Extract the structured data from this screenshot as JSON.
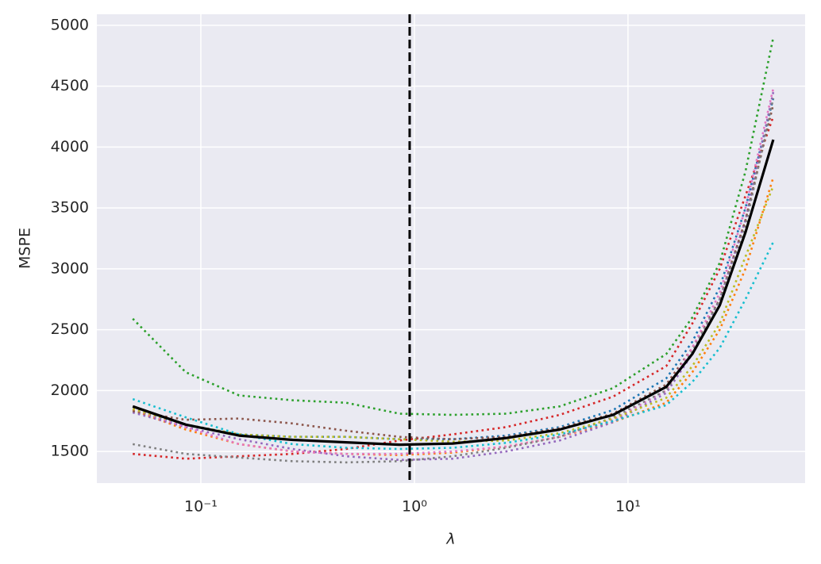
{
  "chart_data": {
    "type": "line",
    "xlabel": "λ",
    "ylabel": "MSPE",
    "x_scale": "log",
    "grid": true,
    "background": "#eaeaf2",
    "xlim": [
      0.0326,
      67.5
    ],
    "ylim": [
      1240,
      5090
    ],
    "xticks": [
      {
        "value": 0.1,
        "label": "10⁻¹"
      },
      {
        "value": 1,
        "label": "10⁰"
      },
      {
        "value": 10,
        "label": "10¹"
      }
    ],
    "yticks": [
      1500,
      2000,
      2500,
      3000,
      3500,
      4000,
      4500,
      5000
    ],
    "vline": {
      "x": 0.95,
      "color": "#000000"
    },
    "x": [
      0.048,
      0.085,
      0.151,
      0.269,
      0.479,
      0.851,
      1.51,
      2.69,
      4.79,
      8.51,
      15.1,
      20,
      26.9,
      35.5,
      47.9
    ],
    "series": [
      {
        "color": "#1f77b4",
        "style": "dotted",
        "values": [
          1830,
          1720,
          1640,
          1620,
          1620,
          1600,
          1600,
          1630,
          1700,
          1840,
          2100,
          2400,
          2850,
          3500,
          4400
        ]
      },
      {
        "color": "#ff7f0e",
        "style": "dotted",
        "values": [
          1840,
          1680,
          1560,
          1500,
          1480,
          1470,
          1490,
          1540,
          1620,
          1740,
          1900,
          2150,
          2500,
          3000,
          3750
        ]
      },
      {
        "color": "#2ca02c",
        "style": "dotted",
        "values": [
          2590,
          2150,
          1960,
          1920,
          1900,
          1810,
          1800,
          1810,
          1870,
          2020,
          2300,
          2600,
          3050,
          3800,
          4900
        ]
      },
      {
        "color": "#d62728",
        "style": "dotted",
        "values": [
          1480,
          1440,
          1460,
          1480,
          1520,
          1590,
          1640,
          1700,
          1800,
          1950,
          2200,
          2550,
          3000,
          3600,
          4250
        ]
      },
      {
        "color": "#9467bd",
        "style": "dotted",
        "values": [
          1820,
          1700,
          1600,
          1520,
          1460,
          1430,
          1440,
          1500,
          1590,
          1740,
          1980,
          2300,
          2750,
          3400,
          4450
        ]
      },
      {
        "color": "#8c564b",
        "style": "dotted",
        "values": [
          1830,
          1760,
          1770,
          1730,
          1670,
          1620,
          1600,
          1620,
          1690,
          1810,
          2050,
          2350,
          2750,
          3400,
          4350
        ]
      },
      {
        "color": "#e377c2",
        "style": "dotted",
        "values": [
          1850,
          1700,
          1560,
          1500,
          1480,
          1480,
          1500,
          1540,
          1620,
          1760,
          2000,
          2350,
          2800,
          3500,
          4480
        ]
      },
      {
        "color": "#7f7f7f",
        "style": "dotted",
        "values": [
          1560,
          1480,
          1450,
          1420,
          1410,
          1420,
          1460,
          1530,
          1620,
          1780,
          2000,
          2320,
          2750,
          3350,
          4400
        ]
      },
      {
        "color": "#bcbd22",
        "style": "dotted",
        "values": [
          1850,
          1720,
          1640,
          1620,
          1620,
          1600,
          1580,
          1590,
          1650,
          1770,
          1940,
          2200,
          2550,
          3100,
          3680
        ]
      },
      {
        "color": "#17becf",
        "style": "dotted",
        "values": [
          1930,
          1780,
          1640,
          1560,
          1530,
          1520,
          1530,
          1570,
          1640,
          1750,
          1880,
          2070,
          2350,
          2750,
          3220
        ]
      },
      {
        "color": "#000000",
        "style": "solid",
        "values": [
          1870,
          1720,
          1630,
          1595,
          1575,
          1555,
          1565,
          1610,
          1680,
          1800,
          2030,
          2300,
          2700,
          3300,
          4060
        ]
      }
    ]
  }
}
